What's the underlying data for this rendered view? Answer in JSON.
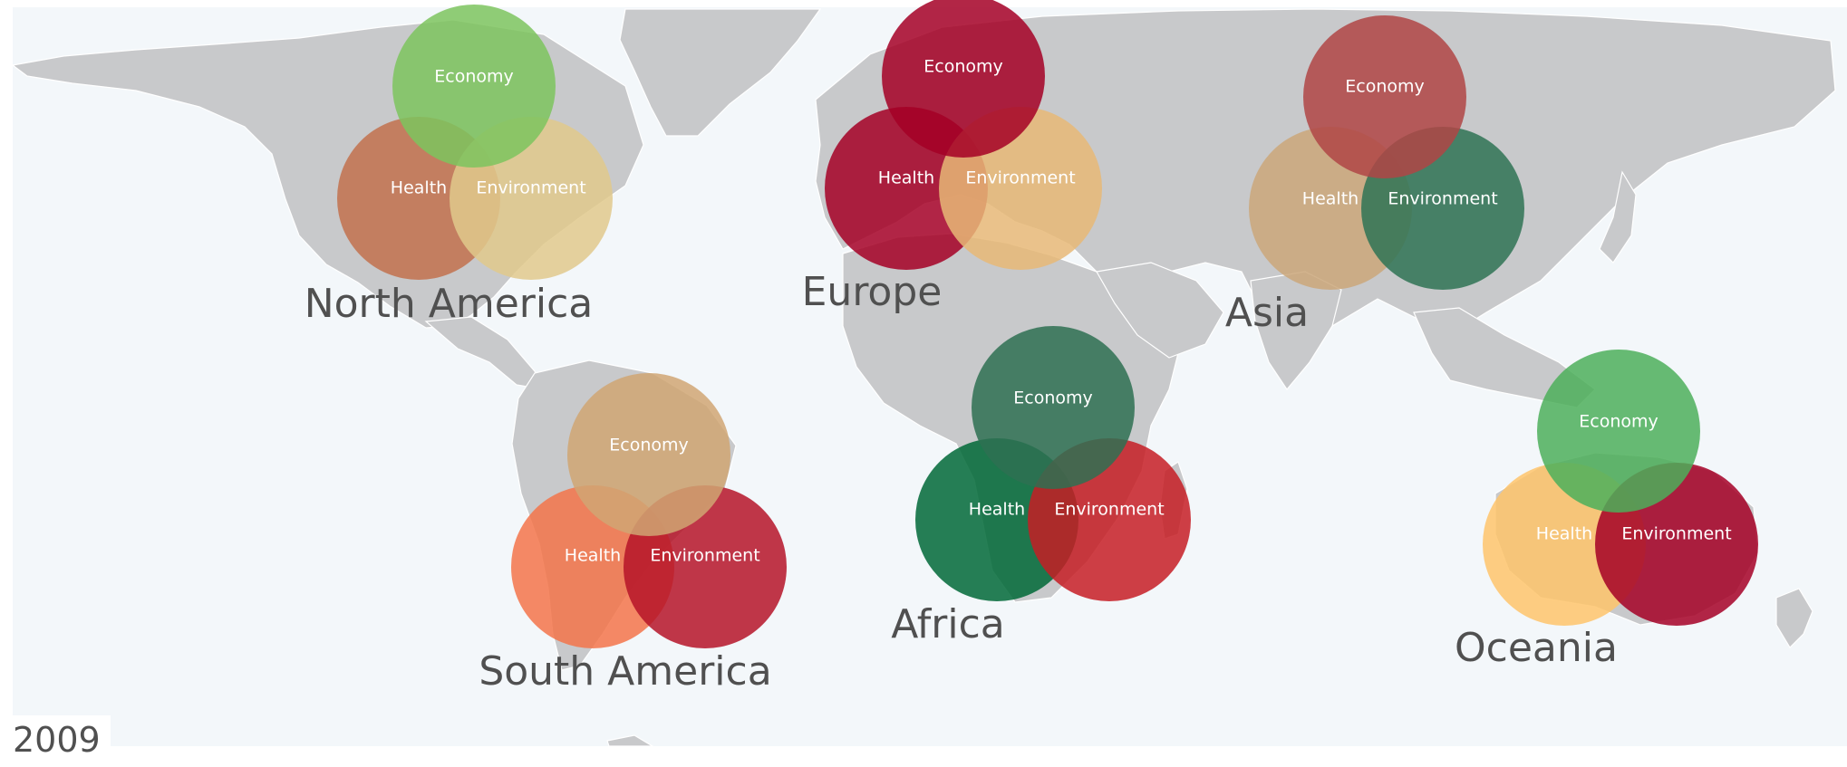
{
  "year": "2009",
  "category_labels": {
    "economy": "Economy",
    "health": "Health",
    "environment": "Environment"
  },
  "regions": [
    {
      "key": "north_america",
      "name": "North America",
      "economy": {
        "color": "#7dc45e"
      },
      "health": {
        "color": "#c2714d"
      },
      "environment": {
        "color": "#e1c98c"
      }
    },
    {
      "key": "europe",
      "name": "Europe",
      "economy": {
        "color": "#a50026"
      },
      "health": {
        "color": "#a50026"
      },
      "environment": {
        "color": "#e8b877"
      }
    },
    {
      "key": "asia",
      "name": "Asia",
      "economy": {
        "color": "#b04545"
      },
      "health": {
        "color": "#cba77a"
      },
      "environment": {
        "color": "#2f7355"
      }
    },
    {
      "key": "south_america",
      "name": "South America",
      "economy": {
        "color": "#d0a673"
      },
      "health": {
        "color": "#f3744a"
      },
      "environment": {
        "color": "#b51428"
      }
    },
    {
      "key": "africa",
      "name": "Africa",
      "economy": {
        "color": "#2e7052"
      },
      "health": {
        "color": "#006837"
      },
      "environment": {
        "color": "#c51d24"
      }
    },
    {
      "key": "oceania",
      "name": "Oceania",
      "economy": {
        "color": "#4caf5a"
      },
      "health": {
        "color": "#fec46b"
      },
      "environment": {
        "color": "#a50026"
      }
    }
  ],
  "colors": {
    "land": "#c8c9cb",
    "ocean": "#f3f7fa",
    "label_text": "#505050"
  }
}
